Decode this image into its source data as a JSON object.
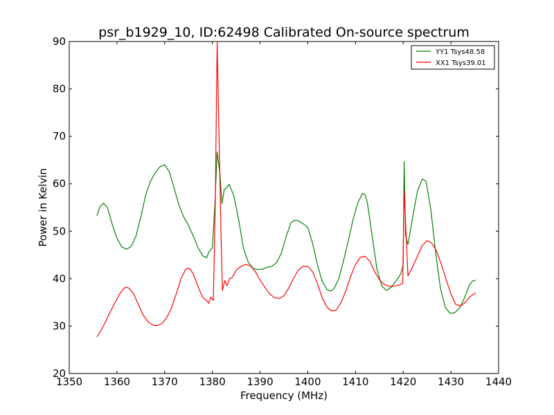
{
  "chart_data": {
    "type": "line",
    "title": "psr_b1929_10, ID:62498 Calibrated On-source spectrum",
    "xlabel": "Frequency (MHz)",
    "ylabel": "Power in Kelvin",
    "xlim": [
      1350,
      1440
    ],
    "ylim": [
      20,
      90
    ],
    "x_ticks": [
      1350,
      1360,
      1370,
      1380,
      1390,
      1400,
      1410,
      1420,
      1430,
      1440
    ],
    "y_ticks": [
      20,
      30,
      40,
      50,
      60,
      70,
      80,
      90
    ],
    "grid": false,
    "legend_position": "top-right",
    "series": [
      {
        "name": "YY1 Tsys48.58",
        "color": "#008000",
        "points": [
          [
            1355.8,
            53.3
          ],
          [
            1356.5,
            55.3
          ],
          [
            1357.2,
            55.9
          ],
          [
            1358.0,
            55.0
          ],
          [
            1359.0,
            51.5
          ],
          [
            1360.0,
            48.5
          ],
          [
            1361.0,
            46.7
          ],
          [
            1362.0,
            46.2
          ],
          [
            1363.0,
            46.8
          ],
          [
            1364.0,
            49.0
          ],
          [
            1365.0,
            53.0
          ],
          [
            1366.0,
            57.5
          ],
          [
            1367.0,
            60.5
          ],
          [
            1368.0,
            62.3
          ],
          [
            1369.0,
            63.6
          ],
          [
            1370.0,
            64.0
          ],
          [
            1371.0,
            62.5
          ],
          [
            1372.0,
            59.0
          ],
          [
            1373.0,
            55.5
          ],
          [
            1374.0,
            53.0
          ],
          [
            1375.0,
            51.2
          ],
          [
            1376.0,
            49.0
          ],
          [
            1377.0,
            46.5
          ],
          [
            1378.0,
            44.8
          ],
          [
            1378.8,
            44.4
          ],
          [
            1379.3,
            45.7
          ],
          [
            1380.0,
            46.5
          ],
          [
            1380.5,
            55.0
          ],
          [
            1381.0,
            66.7
          ],
          [
            1381.6,
            62.0
          ],
          [
            1382.0,
            55.8
          ],
          [
            1382.5,
            58.8
          ],
          [
            1383.0,
            59.2
          ],
          [
            1383.5,
            59.9
          ],
          [
            1384.5,
            57.5
          ],
          [
            1385.5,
            52.5
          ],
          [
            1386.5,
            46.5
          ],
          [
            1387.5,
            43.5
          ],
          [
            1388.5,
            42.2
          ],
          [
            1389.5,
            41.9
          ],
          [
            1390.5,
            42.0
          ],
          [
            1391.5,
            42.4
          ],
          [
            1392.5,
            42.6
          ],
          [
            1393.5,
            43.4
          ],
          [
            1394.5,
            45.5
          ],
          [
            1395.5,
            49.0
          ],
          [
            1396.5,
            51.8
          ],
          [
            1397.2,
            52.3
          ],
          [
            1398.0,
            52.2
          ],
          [
            1399.0,
            51.6
          ],
          [
            1400.0,
            50.8
          ],
          [
            1401.0,
            47.5
          ],
          [
            1402.0,
            43.0
          ],
          [
            1403.0,
            39.5
          ],
          [
            1404.0,
            37.7
          ],
          [
            1404.8,
            37.4
          ],
          [
            1405.5,
            37.9
          ],
          [
            1406.5,
            40.0
          ],
          [
            1407.5,
            43.8
          ],
          [
            1408.5,
            48.0
          ],
          [
            1409.5,
            52.5
          ],
          [
            1410.5,
            56.0
          ],
          [
            1411.5,
            58.0
          ],
          [
            1412.0,
            57.7
          ],
          [
            1412.5,
            56.0
          ],
          [
            1413.5,
            49.0
          ],
          [
            1414.5,
            42.0
          ],
          [
            1415.5,
            38.5
          ],
          [
            1416.5,
            37.5
          ],
          [
            1417.5,
            38.2
          ],
          [
            1418.5,
            39.5
          ],
          [
            1419.5,
            41.0
          ],
          [
            1420.0,
            43.0
          ],
          [
            1420.2,
            64.7
          ],
          [
            1420.5,
            49.0
          ],
          [
            1421.0,
            47.2
          ],
          [
            1422.0,
            53.0
          ],
          [
            1423.0,
            58.5
          ],
          [
            1424.0,
            61.0
          ],
          [
            1424.8,
            60.5
          ],
          [
            1425.8,
            54.5
          ],
          [
            1426.8,
            45.5
          ],
          [
            1427.8,
            38.0
          ],
          [
            1428.8,
            34.0
          ],
          [
            1429.8,
            32.7
          ],
          [
            1430.8,
            32.8
          ],
          [
            1431.8,
            33.8
          ],
          [
            1432.8,
            35.8
          ],
          [
            1433.8,
            38.5
          ],
          [
            1434.5,
            39.5
          ],
          [
            1435.2,
            39.7
          ]
        ]
      },
      {
        "name": "XX1 Tsys39.01",
        "color": "#ff0000",
        "points": [
          [
            1355.8,
            27.7
          ],
          [
            1356.5,
            28.8
          ],
          [
            1357.5,
            30.7
          ],
          [
            1358.5,
            32.8
          ],
          [
            1359.5,
            34.8
          ],
          [
            1360.5,
            36.7
          ],
          [
            1361.5,
            38.0
          ],
          [
            1362.0,
            38.2
          ],
          [
            1362.5,
            38.0
          ],
          [
            1363.5,
            36.8
          ],
          [
            1364.5,
            34.5
          ],
          [
            1365.5,
            32.3
          ],
          [
            1366.5,
            30.9
          ],
          [
            1367.5,
            30.2
          ],
          [
            1368.5,
            30.1
          ],
          [
            1369.5,
            30.6
          ],
          [
            1370.5,
            31.9
          ],
          [
            1371.5,
            34.0
          ],
          [
            1372.5,
            37.0
          ],
          [
            1373.5,
            40.2
          ],
          [
            1374.5,
            42.1
          ],
          [
            1375.2,
            42.2
          ],
          [
            1376.0,
            41.0
          ],
          [
            1377.0,
            38.3
          ],
          [
            1378.0,
            36.0
          ],
          [
            1378.8,
            35.4
          ],
          [
            1379.2,
            34.8
          ],
          [
            1379.7,
            36.1
          ],
          [
            1380.2,
            35.4
          ],
          [
            1380.6,
            55.0
          ],
          [
            1381.0,
            89.8
          ],
          [
            1381.4,
            70.0
          ],
          [
            1381.8,
            50.0
          ],
          [
            1382.1,
            37.5
          ],
          [
            1382.6,
            39.6
          ],
          [
            1383.1,
            38.5
          ],
          [
            1383.6,
            40.0
          ],
          [
            1384.2,
            40.3
          ],
          [
            1385.0,
            41.8
          ],
          [
            1386.0,
            42.6
          ],
          [
            1387.0,
            43.0
          ],
          [
            1388.0,
            42.7
          ],
          [
            1389.0,
            41.5
          ],
          [
            1390.0,
            39.7
          ],
          [
            1391.0,
            38.2
          ],
          [
            1392.0,
            36.8
          ],
          [
            1393.0,
            36.0
          ],
          [
            1394.0,
            35.8
          ],
          [
            1395.0,
            36.4
          ],
          [
            1396.0,
            38.0
          ],
          [
            1397.0,
            40.0
          ],
          [
            1398.0,
            41.8
          ],
          [
            1399.0,
            42.6
          ],
          [
            1400.0,
            42.6
          ],
          [
            1401.0,
            41.5
          ],
          [
            1402.0,
            39.0
          ],
          [
            1403.0,
            36.0
          ],
          [
            1404.0,
            34.0
          ],
          [
            1405.0,
            33.2
          ],
          [
            1406.0,
            33.4
          ],
          [
            1407.0,
            35.0
          ],
          [
            1408.0,
            37.5
          ],
          [
            1409.0,
            40.5
          ],
          [
            1410.0,
            43.0
          ],
          [
            1411.0,
            44.5
          ],
          [
            1412.0,
            44.7
          ],
          [
            1413.0,
            43.7
          ],
          [
            1414.0,
            41.5
          ],
          [
            1415.0,
            39.8
          ],
          [
            1416.0,
            38.8
          ],
          [
            1417.0,
            38.4
          ],
          [
            1418.0,
            38.4
          ],
          [
            1419.0,
            38.6
          ],
          [
            1419.9,
            39.0
          ],
          [
            1420.2,
            58.5
          ],
          [
            1420.5,
            52.0
          ],
          [
            1421.0,
            40.6
          ],
          [
            1422.0,
            42.5
          ],
          [
            1423.0,
            44.8
          ],
          [
            1424.0,
            47.0
          ],
          [
            1425.0,
            48.0
          ],
          [
            1426.0,
            47.5
          ],
          [
            1427.0,
            45.8
          ],
          [
            1428.0,
            43.0
          ],
          [
            1429.0,
            39.8
          ],
          [
            1430.0,
            36.8
          ],
          [
            1431.0,
            34.6
          ],
          [
            1432.0,
            34.2
          ],
          [
            1433.0,
            35.0
          ],
          [
            1434.0,
            36.2
          ],
          [
            1435.2,
            37.0
          ]
        ]
      }
    ]
  }
}
